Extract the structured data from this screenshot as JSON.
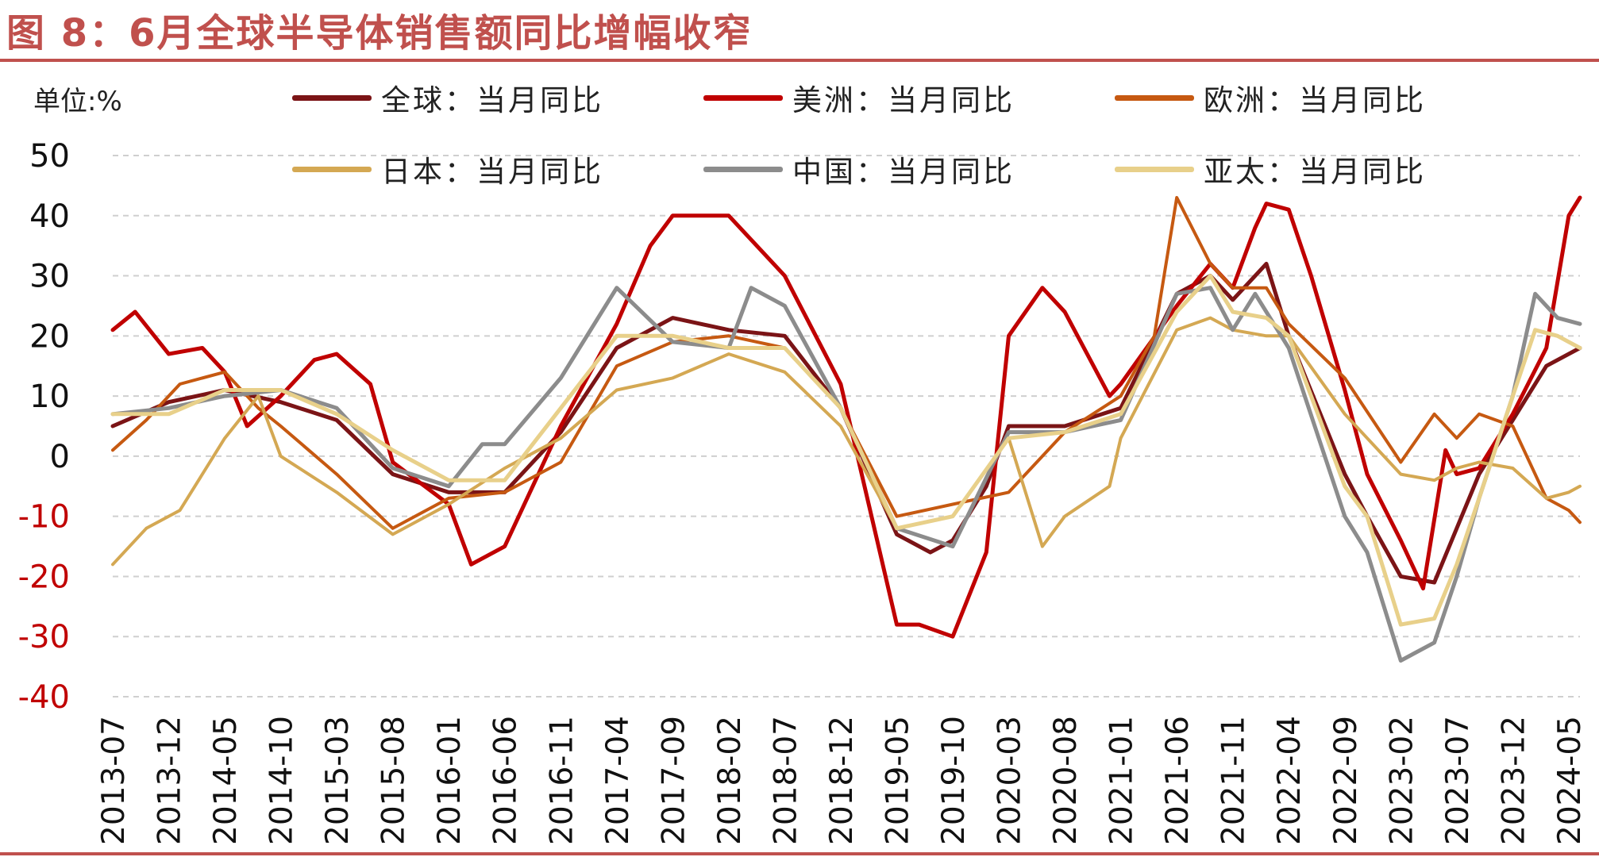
{
  "header": {
    "title": "图 8：6月全球半导体销售额同比增幅收窄",
    "unit_label": "单位:%"
  },
  "chart_data": {
    "type": "line",
    "title": "图 8：6月全球半导体销售额同比增幅收窄",
    "ylabel": "单位:%",
    "xlabel": "",
    "ylim": [
      -40,
      50
    ],
    "yticks": [
      50,
      40,
      30,
      20,
      10,
      0,
      -10,
      -20,
      -30,
      -40
    ],
    "xticks": [
      "2013-07",
      "2013-12",
      "2014-05",
      "2014-10",
      "2015-03",
      "2015-08",
      "2016-01",
      "2016-06",
      "2016-11",
      "2017-04",
      "2017-09",
      "2018-02",
      "2018-07",
      "2018-12",
      "2019-05",
      "2019-10",
      "2020-03",
      "2020-08",
      "2021-01",
      "2021-06",
      "2021-11",
      "2022-04",
      "2022-09",
      "2023-02",
      "2023-07",
      "2023-12",
      "2024-05"
    ],
    "grid": "horizontal-dashed",
    "legend_position": "top",
    "series": [
      {
        "name": "全球：当月同比",
        "color": "#7b1416",
        "width": 5,
        "points": [
          [
            "2013-07",
            5
          ],
          [
            "2013-12",
            9
          ],
          [
            "2014-05",
            11
          ],
          [
            "2014-10",
            9
          ],
          [
            "2015-03",
            6
          ],
          [
            "2015-08",
            -3
          ],
          [
            "2016-01",
            -6
          ],
          [
            "2016-06",
            -6
          ],
          [
            "2016-11",
            4
          ],
          [
            "2017-04",
            18
          ],
          [
            "2017-09",
            23
          ],
          [
            "2018-02",
            21
          ],
          [
            "2018-07",
            20
          ],
          [
            "2018-12",
            8
          ],
          [
            "2019-05",
            -13
          ],
          [
            "2019-08",
            -16
          ],
          [
            "2019-10",
            -14
          ],
          [
            "2020-01",
            -5
          ],
          [
            "2020-03",
            5
          ],
          [
            "2020-08",
            5
          ],
          [
            "2021-01",
            8
          ],
          [
            "2021-06",
            27
          ],
          [
            "2021-09",
            30
          ],
          [
            "2021-11",
            26
          ],
          [
            "2022-02",
            32
          ],
          [
            "2022-04",
            20
          ],
          [
            "2022-09",
            -3
          ],
          [
            "2022-11",
            -10
          ],
          [
            "2023-02",
            -20
          ],
          [
            "2023-05",
            -21
          ],
          [
            "2023-07",
            -12
          ],
          [
            "2023-09",
            -3
          ],
          [
            "2023-12",
            6
          ],
          [
            "2024-03",
            15
          ],
          [
            "2024-06",
            18
          ]
        ]
      },
      {
        "name": "美洲：当月同比",
        "color": "#c00000",
        "width": 5,
        "points": [
          [
            "2013-07",
            21
          ],
          [
            "2013-09",
            24
          ],
          [
            "2013-12",
            17
          ],
          [
            "2014-03",
            18
          ],
          [
            "2014-05",
            14
          ],
          [
            "2014-07",
            5
          ],
          [
            "2014-10",
            10
          ],
          [
            "2015-01",
            16
          ],
          [
            "2015-03",
            17
          ],
          [
            "2015-06",
            12
          ],
          [
            "2015-08",
            -1
          ],
          [
            "2016-01",
            -8
          ],
          [
            "2016-03",
            -18
          ],
          [
            "2016-06",
            -15
          ],
          [
            "2016-11",
            5
          ],
          [
            "2017-04",
            22
          ],
          [
            "2017-07",
            35
          ],
          [
            "2017-09",
            40
          ],
          [
            "2018-02",
            40
          ],
          [
            "2018-07",
            30
          ],
          [
            "2018-12",
            12
          ],
          [
            "2019-05",
            -28
          ],
          [
            "2019-07",
            -28
          ],
          [
            "2019-10",
            -30
          ],
          [
            "2020-01",
            -16
          ],
          [
            "2020-03",
            20
          ],
          [
            "2020-06",
            28
          ],
          [
            "2020-08",
            24
          ],
          [
            "2020-12",
            10
          ],
          [
            "2021-01",
            12
          ],
          [
            "2021-06",
            25
          ],
          [
            "2021-09",
            32
          ],
          [
            "2021-11",
            28
          ],
          [
            "2022-01",
            38
          ],
          [
            "2022-02",
            42
          ],
          [
            "2022-04",
            41
          ],
          [
            "2022-06",
            30
          ],
          [
            "2022-09",
            11
          ],
          [
            "2022-11",
            -3
          ],
          [
            "2023-02",
            -14
          ],
          [
            "2023-04",
            -22
          ],
          [
            "2023-06",
            1
          ],
          [
            "2023-07",
            -3
          ],
          [
            "2023-09",
            -2
          ],
          [
            "2023-12",
            7
          ],
          [
            "2024-03",
            18
          ],
          [
            "2024-05",
            40
          ],
          [
            "2024-06",
            43
          ]
        ]
      },
      {
        "name": "欧洲：当月同比",
        "color": "#c65911",
        "width": 4,
        "points": [
          [
            "2013-07",
            1
          ],
          [
            "2013-10",
            6
          ],
          [
            "2014-01",
            12
          ],
          [
            "2014-05",
            14
          ],
          [
            "2014-08",
            8
          ],
          [
            "2014-10",
            5
          ],
          [
            "2015-03",
            -3
          ],
          [
            "2015-08",
            -12
          ],
          [
            "2016-01",
            -7
          ],
          [
            "2016-06",
            -6
          ],
          [
            "2016-11",
            -1
          ],
          [
            "2017-04",
            15
          ],
          [
            "2017-09",
            19
          ],
          [
            "2018-02",
            20
          ],
          [
            "2018-07",
            18
          ],
          [
            "2018-12",
            8
          ],
          [
            "2019-05",
            -10
          ],
          [
            "2019-10",
            -8
          ],
          [
            "2020-03",
            -6
          ],
          [
            "2020-08",
            4
          ],
          [
            "2021-01",
            10
          ],
          [
            "2021-04",
            20
          ],
          [
            "2021-06",
            43
          ],
          [
            "2021-09",
            32
          ],
          [
            "2021-11",
            28
          ],
          [
            "2022-02",
            28
          ],
          [
            "2022-04",
            22
          ],
          [
            "2022-09",
            13
          ],
          [
            "2023-02",
            -1
          ],
          [
            "2023-05",
            7
          ],
          [
            "2023-07",
            3
          ],
          [
            "2023-09",
            7
          ],
          [
            "2023-12",
            5
          ],
          [
            "2024-03",
            -7
          ],
          [
            "2024-05",
            -9
          ],
          [
            "2024-06",
            -11
          ]
        ]
      },
      {
        "name": "日本：当月同比",
        "color": "#d4a853",
        "width": 4,
        "points": [
          [
            "2013-07",
            -18
          ],
          [
            "2013-10",
            -12
          ],
          [
            "2014-01",
            -9
          ],
          [
            "2014-05",
            3
          ],
          [
            "2014-08",
            10
          ],
          [
            "2014-10",
            0
          ],
          [
            "2015-03",
            -6
          ],
          [
            "2015-08",
            -13
          ],
          [
            "2016-01",
            -8
          ],
          [
            "2016-06",
            -2
          ],
          [
            "2016-11",
            3
          ],
          [
            "2017-04",
            11
          ],
          [
            "2017-09",
            13
          ],
          [
            "2018-02",
            17
          ],
          [
            "2018-07",
            14
          ],
          [
            "2018-12",
            5
          ],
          [
            "2019-05",
            -12
          ],
          [
            "2019-10",
            -10
          ],
          [
            "2020-03",
            3
          ],
          [
            "2020-06",
            -15
          ],
          [
            "2020-08",
            -10
          ],
          [
            "2020-12",
            -5
          ],
          [
            "2021-01",
            3
          ],
          [
            "2021-06",
            21
          ],
          [
            "2021-09",
            23
          ],
          [
            "2021-11",
            21
          ],
          [
            "2022-02",
            20
          ],
          [
            "2022-04",
            20
          ],
          [
            "2022-09",
            7
          ],
          [
            "2023-02",
            -3
          ],
          [
            "2023-05",
            -4
          ],
          [
            "2023-07",
            -2
          ],
          [
            "2023-09",
            -1
          ],
          [
            "2023-12",
            -2
          ],
          [
            "2024-03",
            -7
          ],
          [
            "2024-05",
            -6
          ],
          [
            "2024-06",
            -5
          ]
        ]
      },
      {
        "name": "中国：当月同比",
        "color": "#8c8c8c",
        "width": 5,
        "points": [
          [
            "2013-07",
            7
          ],
          [
            "2013-12",
            8
          ],
          [
            "2014-05",
            10
          ],
          [
            "2014-10",
            11
          ],
          [
            "2015-03",
            8
          ],
          [
            "2015-08",
            -2
          ],
          [
            "2016-01",
            -5
          ],
          [
            "2016-04",
            2
          ],
          [
            "2016-06",
            2
          ],
          [
            "2016-11",
            13
          ],
          [
            "2017-04",
            28
          ],
          [
            "2017-09",
            19
          ],
          [
            "2018-02",
            18
          ],
          [
            "2018-04",
            28
          ],
          [
            "2018-07",
            25
          ],
          [
            "2018-12",
            8
          ],
          [
            "2019-05",
            -12
          ],
          [
            "2019-10",
            -15
          ],
          [
            "2020-03",
            4
          ],
          [
            "2020-08",
            4
          ],
          [
            "2021-01",
            6
          ],
          [
            "2021-06",
            27
          ],
          [
            "2021-09",
            28
          ],
          [
            "2021-11",
            21
          ],
          [
            "2022-01",
            27
          ],
          [
            "2022-04",
            18
          ],
          [
            "2022-09",
            -10
          ],
          [
            "2022-11",
            -16
          ],
          [
            "2023-02",
            -34
          ],
          [
            "2023-05",
            -31
          ],
          [
            "2023-07",
            -20
          ],
          [
            "2023-09",
            -7
          ],
          [
            "2023-12",
            10
          ],
          [
            "2024-02",
            27
          ],
          [
            "2024-04",
            23
          ],
          [
            "2024-06",
            22
          ]
        ]
      },
      {
        "name": "亚太：当月同比",
        "color": "#e8d08a",
        "width": 5,
        "points": [
          [
            "2013-07",
            7
          ],
          [
            "2013-12",
            7
          ],
          [
            "2014-05",
            11
          ],
          [
            "2014-10",
            11
          ],
          [
            "2015-03",
            7
          ],
          [
            "2015-08",
            1
          ],
          [
            "2016-01",
            -4
          ],
          [
            "2016-06",
            -4
          ],
          [
            "2016-11",
            8
          ],
          [
            "2017-04",
            20
          ],
          [
            "2017-09",
            20
          ],
          [
            "2018-02",
            18
          ],
          [
            "2018-07",
            18
          ],
          [
            "2018-12",
            8
          ],
          [
            "2019-05",
            -12
          ],
          [
            "2019-10",
            -10
          ],
          [
            "2020-03",
            3
          ],
          [
            "2020-08",
            4
          ],
          [
            "2021-01",
            7
          ],
          [
            "2021-06",
            24
          ],
          [
            "2021-09",
            30
          ],
          [
            "2021-11",
            24
          ],
          [
            "2022-02",
            23
          ],
          [
            "2022-04",
            20
          ],
          [
            "2022-09",
            -5
          ],
          [
            "2022-11",
            -10
          ],
          [
            "2023-02",
            -28
          ],
          [
            "2023-05",
            -27
          ],
          [
            "2023-07",
            -18
          ],
          [
            "2023-09",
            -7
          ],
          [
            "2023-12",
            10
          ],
          [
            "2024-02",
            21
          ],
          [
            "2024-04",
            20
          ],
          [
            "2024-06",
            18
          ]
        ]
      }
    ]
  }
}
